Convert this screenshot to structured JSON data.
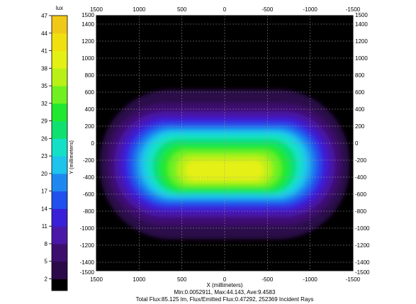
{
  "chart_data": {
    "type": "heatmap",
    "colorbar": {
      "unit_label": "lux",
      "ticks": [
        2,
        5,
        8,
        11,
        14,
        17,
        20,
        23,
        26,
        29,
        32,
        35,
        38,
        41,
        44,
        47
      ],
      "range": [
        0,
        47
      ],
      "colors": [
        "#000000",
        "#2c0a4a",
        "#3c0f6e",
        "#4a18a8",
        "#3a1fd8",
        "#2050ee",
        "#1e88f0",
        "#1ec4ec",
        "#14e0c8",
        "#10e070",
        "#20e830",
        "#70f020",
        "#b8f018",
        "#e4f014",
        "#f0e010",
        "#f0c818"
      ]
    },
    "x_axis": {
      "label": "X (millimeters)",
      "ticks": [
        1500,
        1000,
        500,
        0,
        -500,
        -1000,
        -1500
      ],
      "range": [
        1500,
        -1500
      ]
    },
    "y_axis": {
      "label": "Y (millimeters)",
      "ticks": [
        1500,
        1400,
        1200,
        1000,
        800,
        600,
        400,
        200,
        0,
        -200,
        -400,
        -600,
        -800,
        -1000,
        -1200,
        -1400,
        -1500
      ],
      "range": [
        -1500,
        1500
      ]
    },
    "bands": [
      {
        "level": 2,
        "cx": 0,
        "cy": -250,
        "rx": 1460,
        "ry": 880
      },
      {
        "level": 5,
        "cx": 0,
        "cy": -250,
        "rx": 1370,
        "ry": 720
      },
      {
        "level": 8,
        "cx": 0,
        "cy": -250,
        "rx": 1290,
        "ry": 620
      },
      {
        "level": 11,
        "cx": 0,
        "cy": -250,
        "rx": 1210,
        "ry": 550
      },
      {
        "level": 14,
        "cx": 0,
        "cy": -250,
        "rx": 1130,
        "ry": 490
      },
      {
        "level": 17,
        "cx": 0,
        "cy": -250,
        "rx": 1060,
        "ry": 440
      },
      {
        "level": 20,
        "cx": 0,
        "cy": -250,
        "rx": 990,
        "ry": 400
      },
      {
        "level": 23,
        "cx": 0,
        "cy": -250,
        "rx": 920,
        "ry": 360
      },
      {
        "level": 26,
        "cx": 0,
        "cy": -270,
        "rx": 840,
        "ry": 320
      },
      {
        "level": 29,
        "cx": 0,
        "cy": -290,
        "rx": 760,
        "ry": 270
      },
      {
        "level": 32,
        "cx": 0,
        "cy": -300,
        "rx": 660,
        "ry": 220
      },
      {
        "level": 35,
        "cx": 0,
        "cy": -310,
        "rx": 560,
        "ry": 170
      },
      {
        "level": 38,
        "cx": 0,
        "cy": -320,
        "rx": 460,
        "ry": 120
      }
    ],
    "grid": true,
    "stats": {
      "line1": "Min:0.0052911, Max:44.143, Ave:9.4583",
      "line2": "Total Flux:85.125 lm, Flux/Emitted Flux:0.47292, 252369 Incident Rays"
    }
  }
}
